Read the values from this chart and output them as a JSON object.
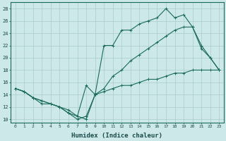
{
  "xlabel": "Humidex (Indice chaleur)",
  "bg_color": "#cce8e8",
  "line_color": "#1a6b5a",
  "grid_color": "#aacccc",
  "xlim": [
    -0.5,
    23.5
  ],
  "ylim": [
    9.5,
    29
  ],
  "xticks": [
    0,
    1,
    2,
    3,
    4,
    5,
    6,
    7,
    8,
    9,
    10,
    11,
    12,
    13,
    14,
    15,
    16,
    17,
    18,
    19,
    20,
    21,
    22,
    23
  ],
  "yticks": [
    10,
    12,
    14,
    16,
    18,
    20,
    22,
    24,
    26,
    28
  ],
  "line1_x": [
    0,
    1,
    2,
    3,
    4,
    5,
    6,
    7,
    8,
    9,
    10,
    11,
    12,
    13,
    14,
    15,
    16,
    17,
    18,
    19,
    20,
    21,
    22,
    23
  ],
  "line1_y": [
    15,
    14.5,
    13.5,
    13,
    12.5,
    12,
    11,
    10.5,
    10,
    14,
    22,
    22,
    24.5,
    24.5,
    25.5,
    26,
    26.5,
    28,
    26.5,
    27,
    25,
    21.5,
    20,
    18
  ],
  "line2_x": [
    0,
    1,
    2,
    3,
    4,
    5,
    6,
    7,
    8,
    9,
    10,
    11,
    12,
    13,
    14,
    15,
    16,
    17,
    18,
    19,
    20,
    21,
    22,
    23
  ],
  "line2_y": [
    15,
    14.5,
    13.5,
    12.5,
    12.5,
    12,
    11,
    10,
    10.5,
    14,
    15,
    17,
    18,
    19.5,
    20.5,
    21.5,
    22.5,
    23.5,
    24.5,
    25,
    25,
    22,
    20,
    18
  ],
  "line3_x": [
    0,
    1,
    2,
    3,
    4,
    5,
    6,
    7,
    8,
    9,
    10,
    11,
    12,
    13,
    14,
    15,
    16,
    17,
    18,
    19,
    20,
    21,
    22,
    23
  ],
  "line3_y": [
    15,
    14.5,
    13.5,
    13,
    12.5,
    12,
    11.5,
    10.5,
    15.5,
    14,
    14.5,
    15,
    15.5,
    15.5,
    16,
    16.5,
    16.5,
    17,
    17.5,
    17.5,
    18,
    18,
    18,
    18
  ]
}
